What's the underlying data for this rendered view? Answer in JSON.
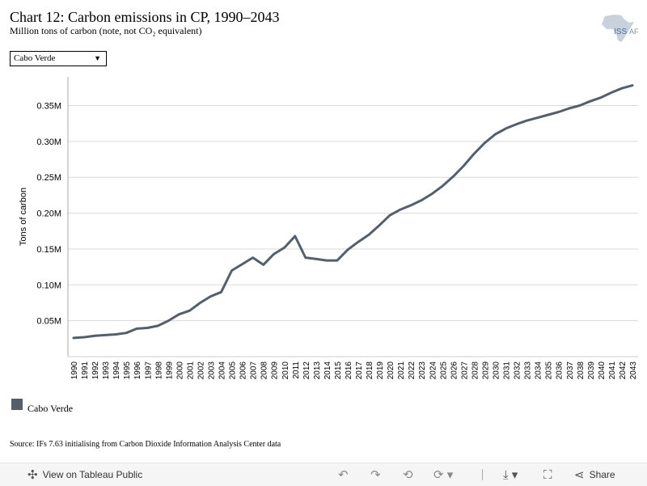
{
  "header": {
    "title": "Chart 12: Carbon emissions in CP, 1990–2043",
    "subtitle": "Million tons of carbon (note, not CO₂ equivalent)"
  },
  "logo": {
    "text_left": "ISS",
    "text_right": "AF",
    "icon": "africa-map-icon"
  },
  "filter": {
    "selected": "Cabo Verde",
    "icon": "dropdown-arrow-icon"
  },
  "source": "Source: IFs 7.63 initialising from Carbon Dioxide Information Analysis Center data",
  "toolbar": {
    "view_label": "View on Tableau Public",
    "share_label": "Share",
    "icons": [
      "tableau-logo-icon",
      "undo-icon",
      "redo-icon",
      "revert-icon",
      "refresh-icon",
      "download-icon",
      "fullscreen-icon",
      "share-icon"
    ]
  },
  "colors": {
    "series": "#555f6b",
    "grid": "#d9d9d9",
    "axis": "#aaaaaa"
  },
  "chart_data": {
    "type": "line",
    "title": "Chart 12: Carbon emissions in CP, 1990–2043",
    "subtitle": "Million tons of carbon (note, not CO₂ equivalent)",
    "xlabel": "",
    "ylabel": "Tons of carbon",
    "ylim": [
      0,
      0.39
    ],
    "yticks": [
      0.05,
      0.1,
      0.15,
      0.2,
      0.25,
      0.3,
      0.35
    ],
    "ytick_labels": [
      "0.05M",
      "0.10M",
      "0.15M",
      "0.20M",
      "0.25M",
      "0.30M",
      "0.35M"
    ],
    "grid": true,
    "legend": "bottom-left",
    "x": [
      1990,
      1991,
      1992,
      1993,
      1994,
      1995,
      1996,
      1997,
      1998,
      1999,
      2000,
      2001,
      2002,
      2003,
      2004,
      2005,
      2006,
      2007,
      2008,
      2009,
      2010,
      2011,
      2012,
      2013,
      2014,
      2015,
      2016,
      2017,
      2018,
      2019,
      2020,
      2021,
      2022,
      2023,
      2024,
      2025,
      2026,
      2027,
      2028,
      2029,
      2030,
      2031,
      2032,
      2033,
      2034,
      2035,
      2036,
      2037,
      2038,
      2039,
      2040,
      2041,
      2042,
      2043
    ],
    "series": [
      {
        "name": "Cabo Verde",
        "values": [
          0.026,
          0.027,
          0.029,
          0.03,
          0.031,
          0.033,
          0.039,
          0.04,
          0.043,
          0.05,
          0.059,
          0.064,
          0.075,
          0.084,
          0.09,
          0.12,
          0.129,
          0.138,
          0.128,
          0.143,
          0.152,
          0.168,
          0.138,
          0.136,
          0.134,
          0.134,
          0.149,
          0.16,
          0.17,
          0.183,
          0.197,
          0.205,
          0.211,
          0.218,
          0.227,
          0.238,
          0.251,
          0.266,
          0.283,
          0.298,
          0.31,
          0.318,
          0.324,
          0.329,
          0.333,
          0.337,
          0.341,
          0.346,
          0.35,
          0.356,
          0.361,
          0.368,
          0.374,
          0.378
        ]
      }
    ]
  }
}
